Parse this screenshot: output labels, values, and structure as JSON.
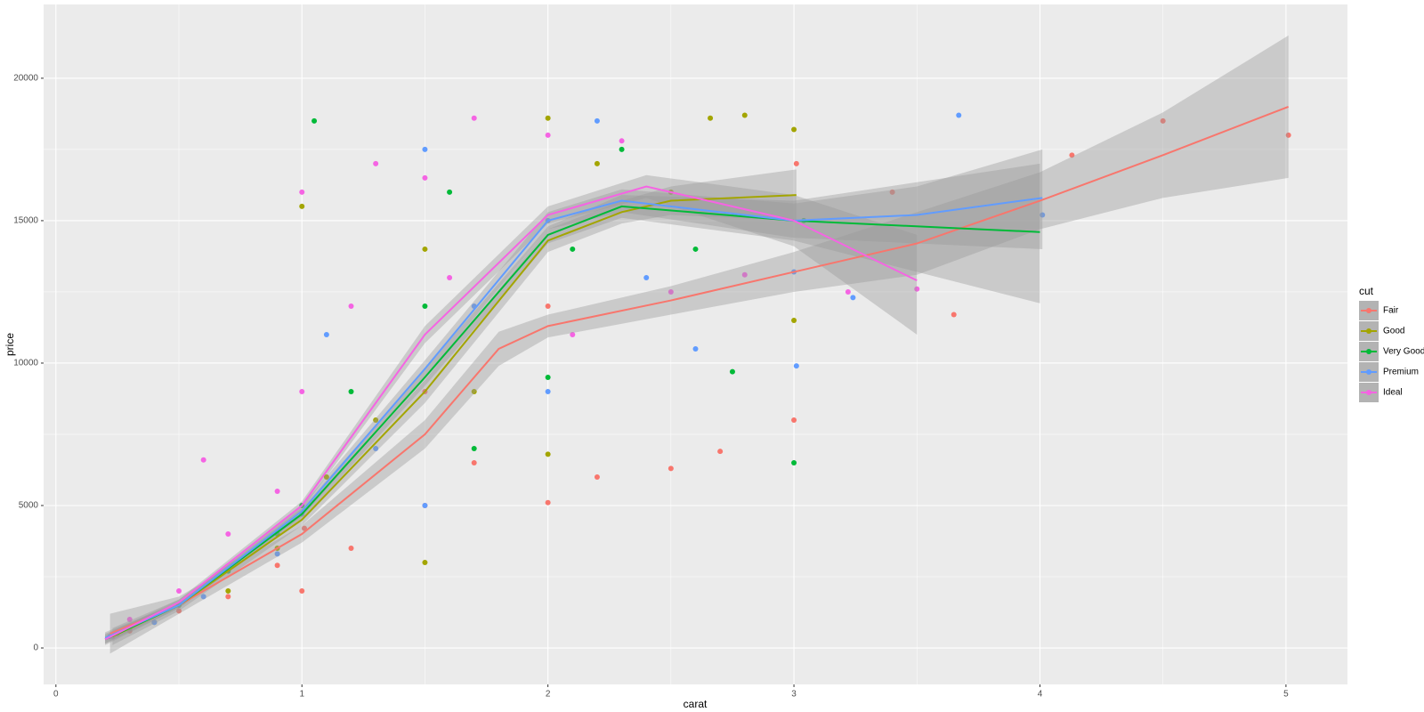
{
  "chart_data": {
    "type": "scatter",
    "x_label": "carat",
    "y_label": "price",
    "legend_title": "cut",
    "legend_position": "right",
    "grid": true,
    "minor_grid": true,
    "xlim": [
      -0.05,
      5.25
    ],
    "ylim": [
      -1280,
      22590
    ],
    "xticks": [
      0,
      1,
      2,
      3,
      4,
      5
    ],
    "yticks": [
      0,
      5000,
      10000,
      15000,
      20000
    ],
    "series": [
      {
        "name": "Fair",
        "color": "#F8766D",
        "x": [
          0.3,
          0.5,
          0.7,
          0.9,
          1.0,
          1.01,
          1.2,
          1.5,
          1.5,
          1.7,
          2.0,
          2.0,
          2.2,
          2.5,
          2.7,
          3.0,
          3.01,
          3.4,
          3.65,
          4.13,
          4.5,
          5.01
        ],
        "values": [
          600,
          1300,
          1800,
          2900,
          2000,
          4200,
          3500,
          5000,
          9000,
          6500,
          5100,
          12000,
          6000,
          6300,
          6900,
          8000,
          17000,
          16000,
          11700,
          17300,
          18500,
          18000
        ],
        "smooth": {
          "x": [
            0.22,
            0.5,
            1,
            1.5,
            1.8,
            2,
            2.5,
            3,
            3.5,
            4,
            4.5,
            5.01
          ],
          "values": [
            500,
            1500,
            4000,
            7500,
            10500,
            11300,
            12200,
            13200,
            14200,
            15700,
            17300,
            19000
          ],
          "lower": [
            -200,
            1200,
            3700,
            7000,
            9900,
            10900,
            11700,
            12500,
            13100,
            14700,
            15800,
            16500
          ],
          "upper": [
            1200,
            1800,
            4300,
            8000,
            11100,
            11700,
            12700,
            13900,
            15300,
            16700,
            18800,
            21500
          ]
        }
      },
      {
        "name": "Good",
        "color": "#A3A500",
        "x": [
          0.25,
          0.4,
          0.7,
          0.9,
          1.0,
          1.1,
          1.3,
          1.5,
          1.5,
          1.7,
          2.0,
          2.0,
          2.2,
          2.5,
          2.66,
          2.8,
          3.0,
          3.0
        ],
        "values": [
          500,
          900,
          2000,
          3500,
          15500,
          6000,
          8000,
          3000,
          14000,
          9000,
          6800,
          18600,
          17000,
          16000,
          18600,
          18700,
          11500,
          18200
        ],
        "smooth": {
          "x": [
            0.23,
            0.5,
            1,
            1.5,
            2,
            2.3,
            2.5,
            3.01
          ],
          "values": [
            400,
            1500,
            4500,
            9000,
            14300,
            15300,
            15700,
            15900
          ],
          "lower": [
            100,
            1300,
            4300,
            8600,
            13900,
            14900,
            15200,
            15000
          ],
          "upper": [
            700,
            1700,
            4700,
            9400,
            14700,
            15700,
            16200,
            16800
          ]
        }
      },
      {
        "name": "Very Good",
        "color": "#00BA38",
        "x": [
          0.3,
          0.5,
          0.7,
          0.9,
          1.0,
          1.05,
          1.2,
          1.5,
          1.6,
          1.7,
          2.0,
          2.1,
          2.3,
          2.6,
          2.75,
          3.0,
          3.04
        ],
        "values": [
          700,
          1500,
          2700,
          4000,
          5000,
          18500,
          9000,
          12000,
          16000,
          7000,
          9500,
          14000,
          17500,
          14000,
          9700,
          6500,
          15000
        ],
        "smooth": {
          "x": [
            0.2,
            0.5,
            1,
            1.5,
            2,
            2.3,
            3,
            4
          ],
          "values": [
            300,
            1500,
            4700,
            9500,
            14500,
            15500,
            15000,
            14600
          ],
          "lower": [
            100,
            1400,
            4500,
            9200,
            14200,
            15100,
            14300,
            12100
          ],
          "upper": [
            500,
            1600,
            4900,
            9800,
            14800,
            15900,
            15700,
            17000
          ]
        }
      },
      {
        "name": "Premium",
        "color": "#619CFF",
        "x": [
          0.22,
          0.4,
          0.6,
          0.9,
          1.0,
          1.1,
          1.3,
          1.5,
          1.5,
          1.7,
          2.0,
          2.0,
          2.2,
          2.4,
          2.6,
          3.0,
          3.01,
          3.24,
          3.67,
          4.01
        ],
        "values": [
          400,
          900,
          1800,
          3300,
          4700,
          11000,
          7000,
          5000,
          17500,
          12000,
          15000,
          9000,
          18500,
          13000,
          10500,
          13200,
          9900,
          12300,
          18700,
          15200
        ],
        "smooth": {
          "x": [
            0.2,
            0.5,
            1,
            1.5,
            2,
            2.3,
            3,
            3.5,
            4.01
          ],
          "values": [
            350,
            1500,
            4800,
            9800,
            15000,
            15700,
            15000,
            15200,
            15800
          ],
          "lower": [
            150,
            1400,
            4600,
            9500,
            14700,
            15300,
            14400,
            14200,
            14000
          ],
          "upper": [
            550,
            1600,
            5000,
            10100,
            15300,
            16100,
            15600,
            16200,
            17500
          ]
        }
      },
      {
        "name": "Ideal",
        "color": "#F564E3",
        "x": [
          0.23,
          0.3,
          0.5,
          0.6,
          0.7,
          0.9,
          1.0,
          1.0,
          1.2,
          1.3,
          1.5,
          1.6,
          1.7,
          2.0,
          2.1,
          2.3,
          2.5,
          2.8,
          3.22,
          3.5
        ],
        "values": [
          400,
          1000,
          2000,
          6600,
          4000,
          5500,
          9000,
          16000,
          12000,
          17000,
          16500,
          13000,
          18600,
          18000,
          11000,
          17800,
          12500,
          13100,
          12500,
          12600
        ],
        "smooth": {
          "x": [
            0.2,
            0.5,
            1,
            1.5,
            2,
            2.4,
            3,
            3.5
          ],
          "values": [
            300,
            1600,
            5000,
            11000,
            15200,
            16200,
            15000,
            12900
          ],
          "lower": [
            150,
            1500,
            4850,
            10700,
            14900,
            15800,
            14100,
            11000
          ],
          "upper": [
            450,
            1700,
            5150,
            11300,
            15500,
            16600,
            15900,
            14500
          ]
        }
      }
    ]
  }
}
